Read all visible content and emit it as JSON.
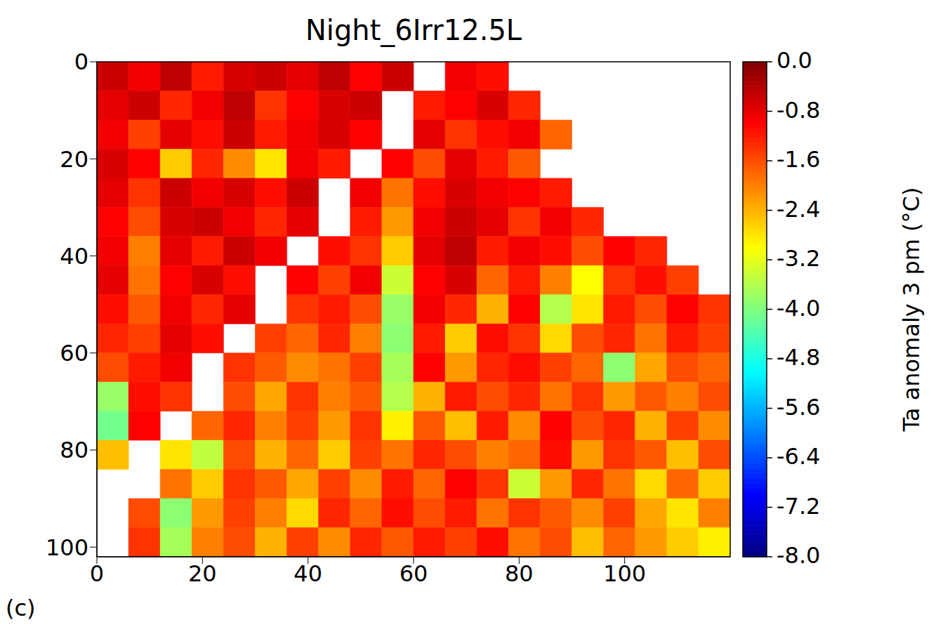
{
  "chart_data": {
    "type": "heatmap",
    "title": "Night_6Irr12.5L",
    "panel_label": "(c)",
    "grid": false,
    "xlim": [
      0,
      120
    ],
    "ylim": [
      0,
      102
    ],
    "xticks": [
      0,
      20,
      40,
      60,
      80,
      100
    ],
    "yticks": [
      0,
      20,
      40,
      60,
      80,
      100
    ],
    "x": [
      3,
      9,
      15,
      21,
      27,
      33,
      39,
      45,
      51,
      57,
      63,
      69,
      75,
      81,
      87,
      93,
      99,
      105,
      111,
      117
    ],
    "y": [
      3,
      9,
      15,
      21,
      27,
      33,
      39,
      45,
      51,
      57,
      63,
      69,
      75,
      81,
      87,
      93,
      99
    ],
    "cells": [
      [
        -0.6,
        -0.9,
        -0.5,
        -1.2,
        -0.7,
        -0.6,
        -0.8,
        -0.5,
        -1.0,
        -0.6,
        null,
        -0.9,
        -1.1,
        null,
        null,
        null,
        null,
        null,
        null,
        null
      ],
      [
        -0.8,
        -0.6,
        -1.3,
        -0.9,
        -0.5,
        -1.4,
        -1.0,
        -0.7,
        -0.6,
        null,
        -1.2,
        -1.0,
        -0.7,
        -1.3,
        null,
        null,
        null,
        null,
        null,
        null
      ],
      [
        -0.9,
        -1.5,
        -0.8,
        -1.1,
        -0.6,
        -1.2,
        -0.9,
        -0.7,
        -1.0,
        null,
        -0.8,
        -1.4,
        -1.1,
        -0.9,
        -1.8,
        null,
        null,
        null,
        null,
        null
      ],
      [
        -0.7,
        -1.0,
        -2.6,
        -1.3,
        -2.1,
        -2.8,
        -0.9,
        -1.2,
        null,
        -1.0,
        -1.6,
        -0.8,
        -1.2,
        -1.7,
        null,
        null,
        null,
        null,
        null,
        null
      ],
      [
        -0.8,
        -1.4,
        -0.6,
        -0.9,
        -0.7,
        -1.1,
        -0.6,
        null,
        -0.9,
        -1.9,
        -1.1,
        -0.7,
        -0.9,
        -1.0,
        -1.2,
        null,
        null,
        null,
        null,
        null
      ],
      [
        -1.0,
        -1.6,
        -0.7,
        -0.6,
        -0.9,
        -1.3,
        -0.8,
        null,
        -1.2,
        -2.2,
        -0.9,
        -0.6,
        -0.8,
        -1.4,
        -0.9,
        -1.3,
        null,
        null,
        null,
        null
      ],
      [
        -0.9,
        -2.0,
        -0.8,
        -1.2,
        -0.6,
        -0.9,
        null,
        -1.1,
        -1.4,
        -2.6,
        -0.8,
        -0.5,
        -1.2,
        -0.9,
        -1.1,
        -1.6,
        -1.0,
        -1.3,
        null,
        null
      ],
      [
        -0.8,
        -1.9,
        -1.0,
        -0.7,
        -1.1,
        null,
        -1.0,
        -1.5,
        -0.9,
        -3.4,
        -1.0,
        -0.7,
        -1.8,
        -1.2,
        -2.0,
        -3.0,
        -1.4,
        -1.1,
        -1.5,
        null
      ],
      [
        -1.1,
        -1.7,
        -0.9,
        -1.3,
        -0.8,
        null,
        -1.4,
        -1.2,
        -1.6,
        -3.8,
        -0.9,
        -1.3,
        -2.4,
        -1.0,
        -3.6,
        -2.8,
        -1.2,
        -1.6,
        -1.0,
        -1.4
      ],
      [
        -1.3,
        -1.5,
        -0.8,
        -1.1,
        null,
        -1.5,
        -1.8,
        -1.3,
        -2.0,
        -3.9,
        -1.2,
        -2.6,
        -1.1,
        -1.4,
        -2.7,
        -1.6,
        -1.3,
        -1.9,
        -1.2,
        -1.5
      ],
      [
        -1.6,
        -1.2,
        -0.9,
        null,
        -1.4,
        -1.7,
        -2.1,
        -1.9,
        -1.5,
        -3.7,
        -1.0,
        -2.2,
        -1.3,
        -1.1,
        -1.5,
        -1.8,
        -3.9,
        -2.3,
        -1.6,
        -1.8
      ],
      [
        -3.8,
        -1.1,
        -1.4,
        null,
        -1.6,
        -2.3,
        -1.4,
        -2.0,
        -1.7,
        -3.6,
        -2.4,
        -1.2,
        -1.6,
        -1.3,
        -1.9,
        -1.4,
        -2.2,
        -1.7,
        -2.0,
        -1.6
      ],
      [
        -4.1,
        -1.0,
        null,
        -1.8,
        -1.3,
        -2.0,
        -1.5,
        -2.2,
        -1.4,
        -2.9,
        -1.7,
        -2.5,
        -1.2,
        -2.1,
        -1.0,
        -1.6,
        -1.3,
        -2.4,
        -1.5,
        -2.1
      ],
      [
        -2.5,
        null,
        -2.8,
        -3.5,
        -1.6,
        -2.4,
        -1.8,
        -2.6,
        -1.5,
        -1.9,
        -1.3,
        -1.6,
        -2.0,
        -1.8,
        -1.1,
        -2.2,
        -1.4,
        -1.7,
        -2.5,
        -1.6
      ],
      [
        null,
        null,
        -1.9,
        -2.6,
        -1.4,
        -1.7,
        -2.3,
        -1.5,
        -2.1,
        -1.2,
        -1.8,
        -1.0,
        -1.4,
        -3.4,
        -2.2,
        -1.3,
        -1.9,
        -2.7,
        -1.8,
        -2.6
      ],
      [
        null,
        -1.6,
        -3.9,
        -2.2,
        -1.5,
        -2.0,
        -2.7,
        -1.3,
        -1.8,
        -1.1,
        -1.6,
        -1.2,
        -1.9,
        -1.4,
        -1.7,
        -2.1,
        -1.5,
        -2.3,
        -2.8,
        -2.0
      ],
      [
        null,
        -1.4,
        -3.7,
        -2.0,
        -1.6,
        -2.4,
        -1.5,
        -2.1,
        -1.3,
        -1.7,
        -1.2,
        -1.5,
        -1.1,
        -1.9,
        -1.6,
        -2.5,
        -1.8,
        -2.2,
        -2.6,
        -2.9
      ]
    ],
    "colorbar": {
      "label": "Ta anomaly 3 pm (°C)",
      "range": [
        -8,
        0
      ],
      "ticks": [
        {
          "value": 0,
          "label": "0.0"
        },
        -0.8,
        -1.6,
        -2.4,
        -3.2,
        {
          "value": -4,
          "label": "-4.0"
        },
        -4.8,
        -5.6,
        -6.4,
        -7.2,
        {
          "value": -8,
          "label": "-8.0"
        }
      ]
    }
  }
}
